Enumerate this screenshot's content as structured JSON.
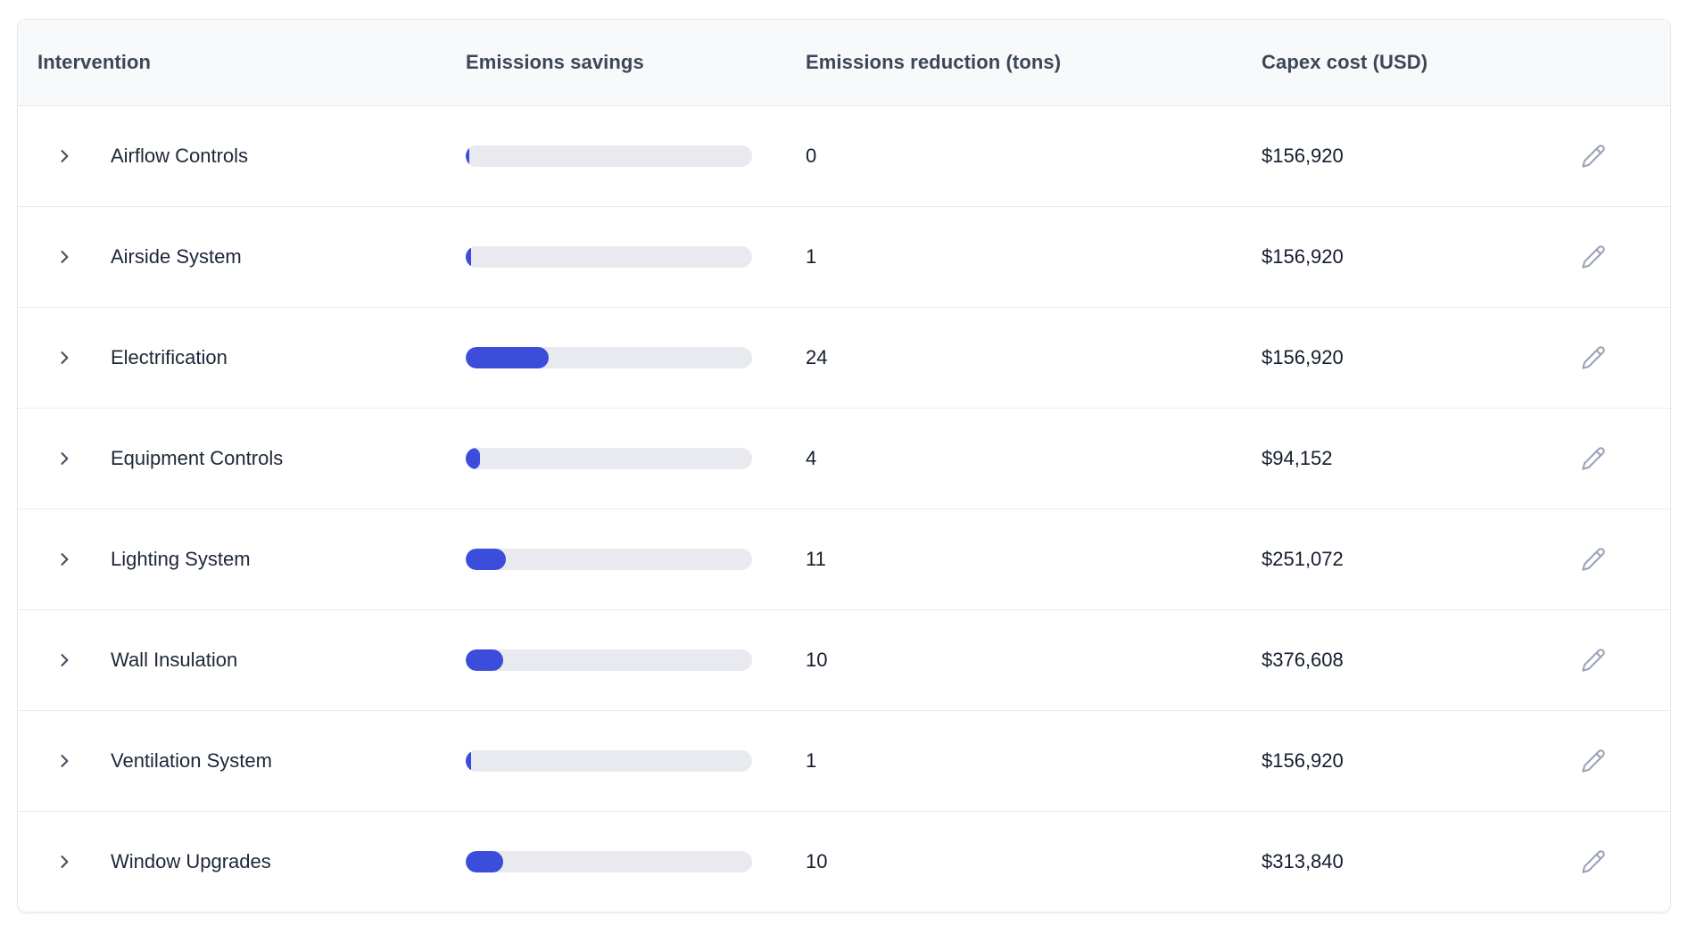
{
  "table": {
    "columns": [
      {
        "label": "Intervention"
      },
      {
        "label": "Emissions savings"
      },
      {
        "label": "Emissions reduction (tons)"
      },
      {
        "label": "Capex cost (USD)"
      }
    ],
    "rows": [
      {
        "intervention": "Airflow Controls",
        "bar_pct": 1,
        "reduction": "0",
        "capex": "$156,920"
      },
      {
        "intervention": "Airside System",
        "bar_pct": 2,
        "reduction": "1",
        "capex": "$156,920"
      },
      {
        "intervention": "Electrification",
        "bar_pct": 29,
        "reduction": "24",
        "capex": "$156,920"
      },
      {
        "intervention": "Equipment Controls",
        "bar_pct": 5,
        "reduction": "4",
        "capex": "$94,152"
      },
      {
        "intervention": "Lighting System",
        "bar_pct": 14,
        "reduction": "11",
        "capex": "$251,072"
      },
      {
        "intervention": "Wall Insulation",
        "bar_pct": 13,
        "reduction": "10",
        "capex": "$376,608"
      },
      {
        "intervention": "Ventilation System",
        "bar_pct": 2,
        "reduction": "1",
        "capex": "$156,920"
      },
      {
        "intervention": "Window Upgrades",
        "bar_pct": 13,
        "reduction": "10",
        "capex": "$313,840"
      }
    ],
    "icons": {
      "expand": "chevron-right-icon",
      "edit": "pencil-icon"
    }
  },
  "colors": {
    "bar_fill": "#3c4ddb",
    "bar_track": "#e9eaef",
    "header_bg": "#f8f9fb",
    "header_text": "#3d4656",
    "cell_text": "#1d2738"
  }
}
